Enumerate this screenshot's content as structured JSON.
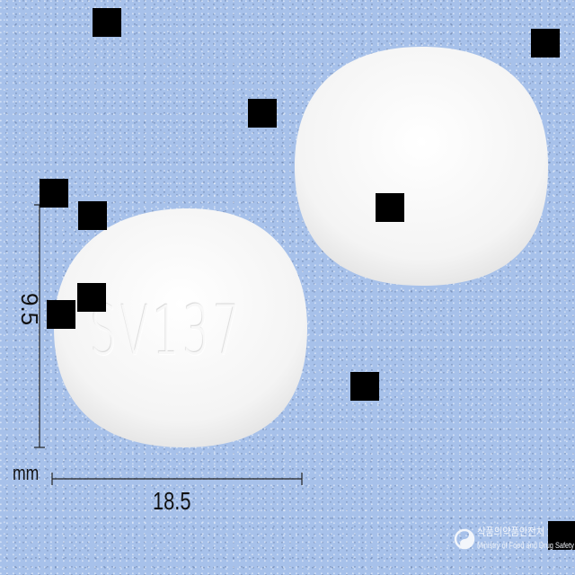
{
  "pill": {
    "imprint": "SV137",
    "color": "#ffffff"
  },
  "measurements": {
    "width": "18.5",
    "thickness": "9.5",
    "unit": "mm"
  },
  "watermark": {
    "korean": "식품의약품안전처",
    "english": "Ministry of Food and Drug Safety"
  },
  "colors": {
    "background": "#a7c1ea",
    "pill": "#ffffff",
    "redaction": "#000000"
  }
}
